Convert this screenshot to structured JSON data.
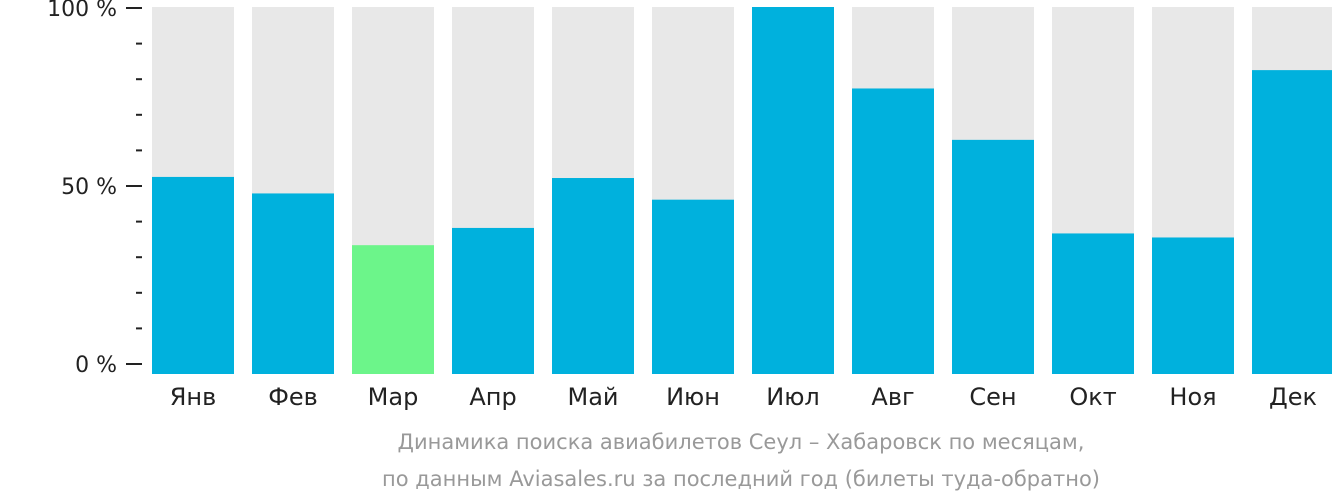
{
  "colors": {
    "bar": "#00b1dd",
    "highlight": "#6cf58a",
    "track": "#e8e8e8",
    "axis": "#222222",
    "caption": "#999999"
  },
  "caption": {
    "line1": "Динамика поиска авиабилетов Сеул – Хабаровск по месяцам,",
    "line2": "по данным Aviasales.ru за последний год (билеты туда-обратно)"
  },
  "chart_data": {
    "type": "bar",
    "title": "",
    "xlabel": "",
    "ylabel": "",
    "ylim": [
      0,
      100
    ],
    "yticks": [
      {
        "value": 0,
        "label": "0 %"
      },
      {
        "value": 50,
        "label": "50 %"
      },
      {
        "value": 100,
        "label": "100 %"
      }
    ],
    "minor_tick_step": 10,
    "grid": false,
    "legend": "none",
    "categories": [
      "Янв",
      "Фев",
      "Мар",
      "Апр",
      "Май",
      "Июн",
      "Июл",
      "Авг",
      "Сен",
      "Окт",
      "Ноя",
      "Дек"
    ],
    "values": [
      53.7,
      49.2,
      35.1,
      39.8,
      53.4,
      47.5,
      100,
      77.8,
      63.8,
      38.3,
      37.2,
      82.8
    ],
    "highlight_category": "Мар"
  }
}
